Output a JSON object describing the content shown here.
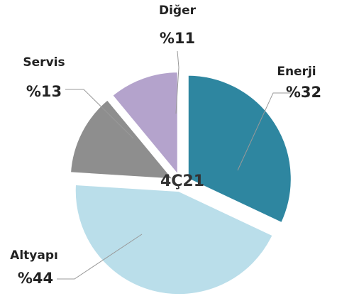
{
  "chart_data": {
    "type": "pie",
    "center_label": "4Ç21",
    "categories": [
      "Enerji",
      "Altyapı",
      "Servis",
      "Diğer"
    ],
    "values": [
      32,
      44,
      13,
      11
    ],
    "value_labels": [
      "%32",
      "%44",
      "%13",
      "%11"
    ],
    "colors": [
      "#2e86a0",
      "#badeea",
      "#8e8e8e",
      "#b4a3cc"
    ]
  }
}
